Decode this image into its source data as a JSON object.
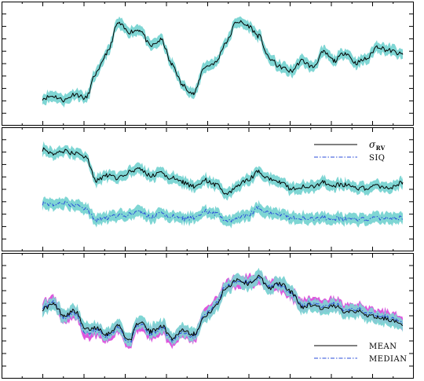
{
  "chart_data": [
    {
      "type": "line",
      "panel": "top",
      "x_range": [
        0,
        100
      ],
      "y_range": [
        0,
        100
      ],
      "grid": false,
      "band_color": "#7fd6d4",
      "series": [
        {
          "color": "#000000",
          "style": "solid",
          "band_halfwidth": 5,
          "x": [
            0,
            3,
            6,
            9,
            12,
            15,
            18,
            21,
            24,
            27,
            30,
            33,
            36,
            39,
            42,
            45,
            48,
            51,
            54,
            57,
            60,
            63,
            66,
            69,
            72,
            75,
            78,
            81,
            84,
            87,
            90,
            93,
            96,
            100
          ],
          "y": [
            16,
            18,
            14,
            20,
            16,
            40,
            60,
            88,
            80,
            82,
            66,
            72,
            48,
            28,
            20,
            46,
            50,
            70,
            90,
            86,
            76,
            54,
            46,
            42,
            52,
            46,
            60,
            52,
            60,
            50,
            54,
            66,
            62,
            58
          ]
        }
      ]
    },
    {
      "type": "line",
      "panel": "middle",
      "x_range": [
        0,
        100
      ],
      "y_range": [
        0,
        100
      ],
      "grid": false,
      "legend_position": "top-right",
      "band_color": "#7fd6d4",
      "series": [
        {
          "name": "σ_RV",
          "color": "#000000",
          "style": "solid",
          "band_halfwidth": 5,
          "x": [
            0,
            3,
            6,
            9,
            12,
            15,
            18,
            21,
            24,
            27,
            30,
            33,
            36,
            39,
            42,
            45,
            48,
            51,
            54,
            57,
            60,
            63,
            66,
            69,
            72,
            75,
            78,
            81,
            84,
            87,
            90,
            93,
            96,
            100
          ],
          "y": [
            88,
            84,
            86,
            84,
            80,
            58,
            63,
            60,
            66,
            69,
            62,
            65,
            60,
            56,
            52,
            58,
            54,
            44,
            52,
            58,
            66,
            60,
            56,
            50,
            52,
            51,
            56,
            53,
            54,
            50,
            50,
            52,
            50,
            56
          ]
        },
        {
          "name": "SIQ",
          "color": "#2a4bd8",
          "style": "dashdot",
          "band_halfwidth": 5,
          "x": [
            0,
            3,
            6,
            9,
            12,
            15,
            18,
            21,
            24,
            27,
            30,
            33,
            36,
            39,
            42,
            45,
            48,
            51,
            54,
            57,
            60,
            63,
            66,
            69,
            72,
            75,
            78,
            81,
            84,
            87,
            90,
            93,
            96,
            100
          ],
          "y": [
            36,
            35,
            36,
            34,
            30,
            20,
            22,
            24,
            25,
            28,
            22,
            26,
            23,
            21,
            22,
            28,
            26,
            18,
            21,
            24,
            31,
            27,
            25,
            22,
            22,
            20,
            22,
            21,
            21,
            20,
            20,
            21,
            21,
            22
          ]
        }
      ]
    },
    {
      "type": "line",
      "panel": "bottom",
      "x_range": [
        0,
        100
      ],
      "y_range": [
        0,
        100
      ],
      "grid": false,
      "legend_position": "bottom-right",
      "band_colors": [
        "#7fd6d4",
        "#d83ad8"
      ],
      "series": [
        {
          "name": "MEAN",
          "color": "#000000",
          "style": "solid",
          "band_halfwidth": 6,
          "x": [
            0,
            3,
            6,
            9,
            12,
            15,
            18,
            21,
            24,
            27,
            30,
            33,
            36,
            39,
            42,
            45,
            48,
            51,
            54,
            57,
            60,
            63,
            66,
            69,
            72,
            75,
            78,
            81,
            84,
            87,
            90,
            93,
            96,
            100
          ],
          "y": [
            56,
            60,
            50,
            54,
            36,
            38,
            32,
            40,
            26,
            44,
            34,
            40,
            28,
            36,
            32,
            48,
            58,
            76,
            84,
            80,
            86,
            76,
            80,
            72,
            58,
            60,
            56,
            58,
            54,
            54,
            50,
            48,
            46,
            40
          ]
        },
        {
          "name": "MEDIAN",
          "color": "#2a4bd8",
          "style": "dashdot",
          "band_halfwidth": 6,
          "x": [
            0,
            3,
            6,
            9,
            12,
            15,
            18,
            21,
            24,
            27,
            30,
            33,
            36,
            39,
            42,
            45,
            48,
            51,
            54,
            57,
            60,
            63,
            66,
            69,
            72,
            75,
            78,
            81,
            84,
            87,
            90,
            93,
            96,
            100
          ],
          "y": [
            58,
            62,
            48,
            52,
            32,
            36,
            30,
            38,
            24,
            42,
            32,
            38,
            26,
            34,
            30,
            50,
            60,
            78,
            82,
            82,
            84,
            78,
            78,
            70,
            60,
            62,
            58,
            60,
            56,
            56,
            52,
            50,
            48,
            42
          ]
        }
      ]
    }
  ]
}
